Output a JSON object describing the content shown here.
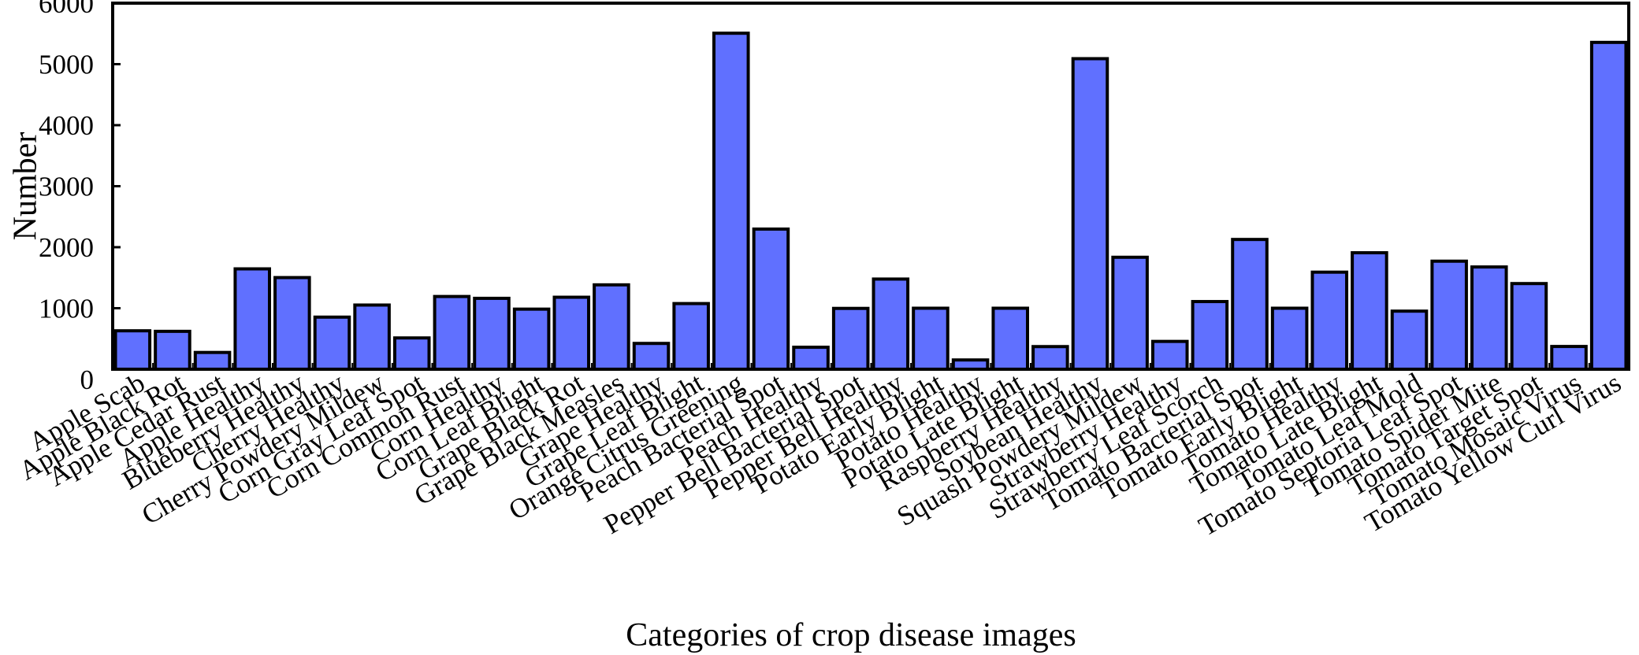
{
  "chart_data": {
    "type": "bar",
    "title": "",
    "xlabel": "Categories of crop disease images",
    "ylabel": "Number",
    "ylim": [
      0,
      6000
    ],
    "yticks": [
      0,
      1000,
      2000,
      3000,
      4000,
      5000,
      6000
    ],
    "grid": false,
    "legend": "none",
    "bar_color": "#6070FF",
    "categories": [
      "Apple Scab",
      "Apple Black Rot",
      "Apple Cedar Rust",
      "Apple Healthy",
      "Blueberry Healthy",
      "Cherry Healthy",
      "Cherry Powdery Mildew",
      "Corn Gray Leaf Spot",
      "Corn Common Rust",
      "Corn Healthy",
      "Corn Leaf Blight",
      "Grape Black Rot",
      "Grape Black Measles",
      "Grape Healthy",
      "Grape Leaf Blight",
      "Orange Citrus Greening",
      "Peach Bacterial Spot",
      "Peach Healthy",
      "Pepper Bell Bacterial Spot",
      "Pepper Bell Healthy",
      "Potato Early Blight",
      "Potato Healthy",
      "Potato Late Blight",
      "Raspberry Healthy",
      "Soybean Healthy",
      "Squash Powdery Mildew",
      "Strawberry Healthy",
      "Strawberry Leaf Scorch",
      "Tomato Bacterial Spot",
      "Tomato Early Blight",
      "Tomato Healthy",
      "Tomato Late Blight",
      "Tomato Leaf Mold",
      "Tomato Septoria Leaf Spot",
      "Tomato Spider Mite",
      "Tomato Target Spot",
      "Tomato Mosaic Virus",
      "Tomato Yellow Curl Virus"
    ],
    "values": [
      630,
      621,
      275,
      1645,
      1502,
      854,
      1052,
      513,
      1192,
      1162,
      985,
      1180,
      1383,
      423,
      1076,
      5507,
      2297,
      360,
      997,
      1478,
      1000,
      152,
      1000,
      371,
      5090,
      1835,
      456,
      1109,
      2127,
      1000,
      1591,
      1909,
      952,
      1771,
      1676,
      1404,
      373,
      5357
    ]
  }
}
